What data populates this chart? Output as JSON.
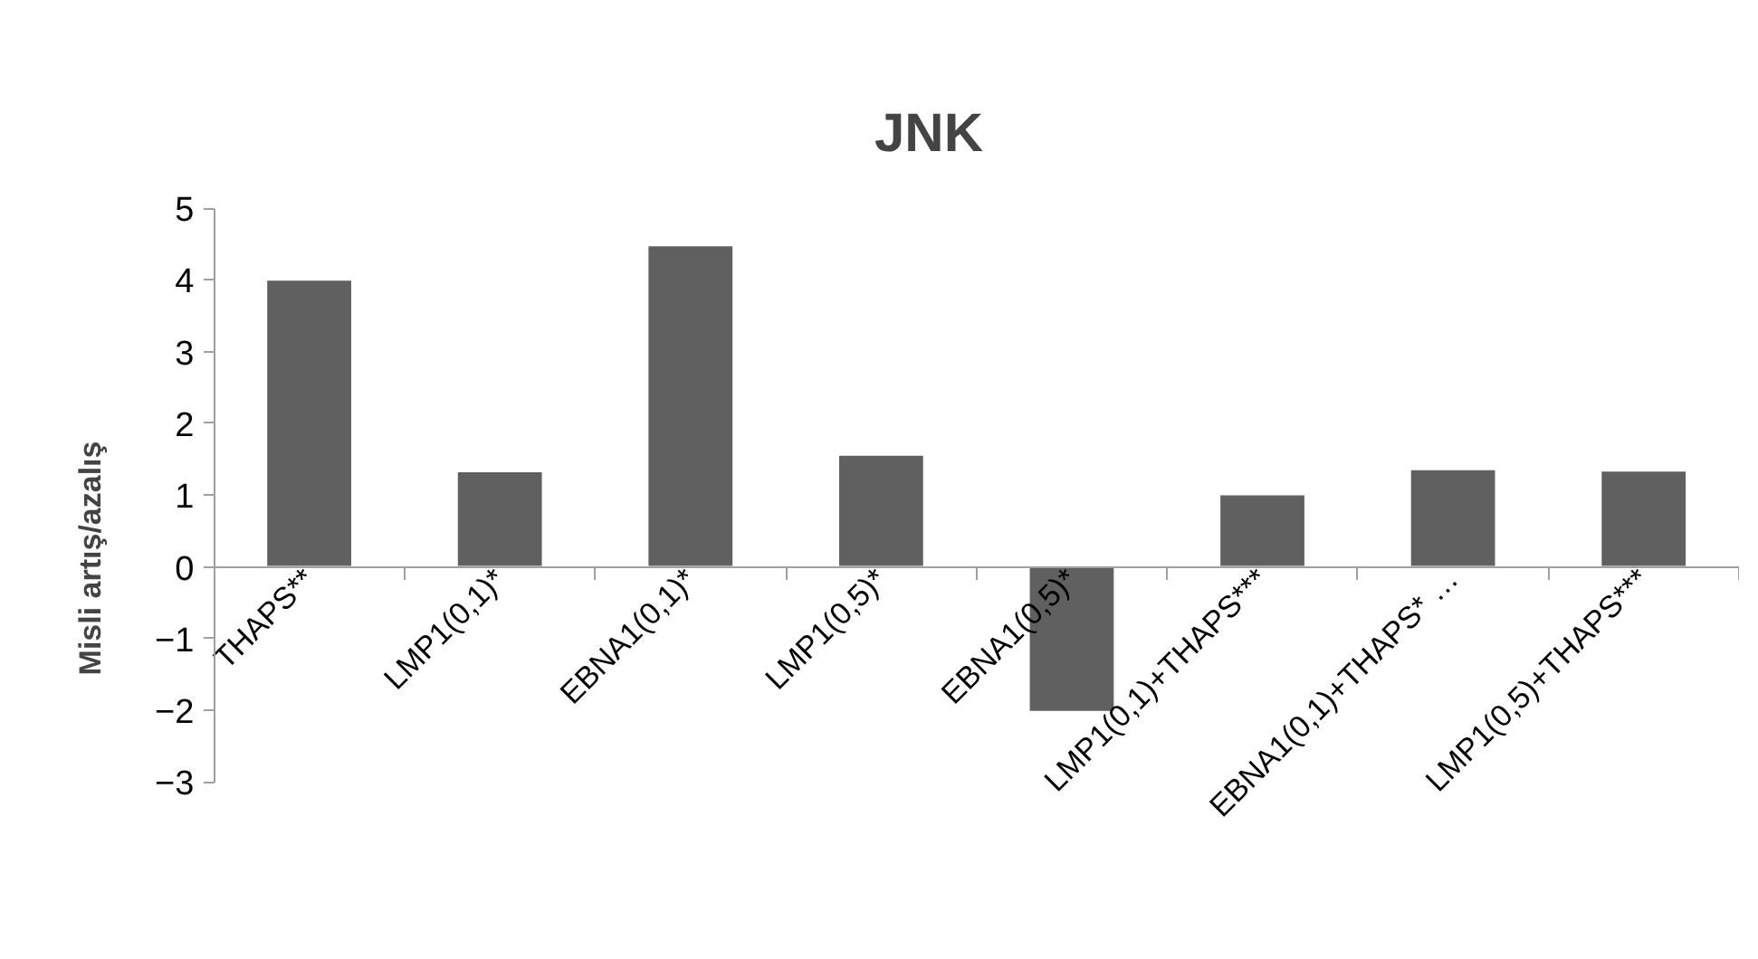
{
  "chart_data": {
    "type": "bar",
    "title": "JNK",
    "ylabel": "Misli artış/azalış",
    "categories": [
      "THAPS**",
      "LMP1(0,1)*",
      "EBNA1(0,1)*",
      "LMP1(0,5)*",
      "EBNA1(0,5)*",
      "LMP1(0,1)+THAPS***",
      "EBNA1(0,1)+THAPS* …",
      "LMP1(0,5)+THAPS***"
    ],
    "values": [
      4.0,
      1.33,
      4.48,
      1.56,
      -2.02,
      1.01,
      1.36,
      1.34
    ],
    "color": "#606060",
    "ylim": [
      -3,
      5
    ],
    "yticks": [
      -3,
      -2,
      -1,
      0,
      1,
      2,
      3,
      4,
      5
    ],
    "grid": false
  }
}
